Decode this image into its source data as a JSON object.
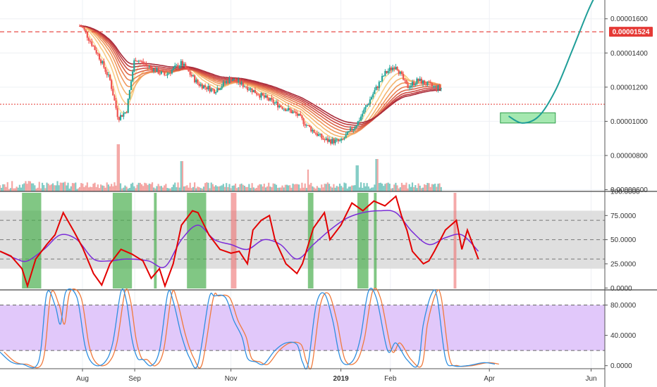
{
  "colors": {
    "up": "#26a69a",
    "down": "#ef5350",
    "vol_up": "#80cbc4",
    "vol_down": "#f4a6a4",
    "alert": "#e53935",
    "ribbon": [
      "#fbe0a0",
      "#f8cc84",
      "#f4b46e",
      "#f0995e",
      "#e87f52",
      "#dc6449",
      "#cf4c43",
      "#bf3a3e",
      "#a82a39"
    ],
    "rsi_fast": "#e30000",
    "rsi_slow": "#7b2cd8",
    "rsi_band": "#d9d9d9",
    "green_shade": "#4caf50",
    "red_shade": "#ef7070",
    "stoch_band": "#e1c8fa",
    "stoch_k": "#2f8fe0",
    "stoch_d": "#f07a3c",
    "projection": "#1f9e98",
    "target_box": "#a5e8b0"
  },
  "chart_data": [
    {
      "type": "candlestick",
      "panel": "price",
      "scale": "linear",
      "ylim": [
        5.9e-06,
        1.71e-05
      ],
      "y_ticks": [
        "0.00001600",
        "0.00001400",
        "0.00001200",
        "0.00001000",
        "0.00000800",
        "0.00000600"
      ],
      "alert_line": {
        "value": 1.524e-05,
        "label": "0.00001524"
      },
      "support_line": {
        "value": 1.1e-05
      },
      "x_ticks": [
        "Aug",
        "Sep",
        "Nov",
        "2019",
        "Feb",
        "Apr",
        "Jun"
      ],
      "price_path": [
        [
          0,
          1.88e-05
        ],
        [
          10,
          1.72e-05
        ],
        [
          20,
          1.63e-05
        ],
        [
          30,
          1.55e-05
        ],
        [
          36,
          1.38e-05
        ],
        [
          40,
          1.24e-05
        ],
        [
          43,
          1.02e-05
        ],
        [
          46,
          1.06e-05
        ],
        [
          49,
          1.37e-05
        ],
        [
          54,
          1.32e-05
        ],
        [
          60,
          1.27e-05
        ],
        [
          66,
          1.34e-05
        ],
        [
          72,
          1.22e-05
        ],
        [
          78,
          1.18e-05
        ],
        [
          84,
          1.25e-05
        ],
        [
          90,
          1.2e-05
        ],
        [
          96,
          1.14e-05
        ],
        [
          102,
          1.09e-05
        ],
        [
          108,
          1.04e-05
        ],
        [
          112,
          9.7e-06
        ],
        [
          118,
          8.9e-06
        ],
        [
          124,
          8.8e-06
        ],
        [
          130,
          9.9e-06
        ],
        [
          136,
          1.17e-05
        ],
        [
          140,
          1.28e-05
        ],
        [
          144,
          1.33e-05
        ],
        [
          148,
          1.2e-05
        ],
        [
          152,
          1.24e-05
        ],
        [
          158,
          1.2e-05
        ],
        [
          166,
          1.18e-05
        ],
        [
          172,
          1.16e-05
        ],
        [
          180,
          1.22e-05
        ],
        [
          188,
          1.17e-05
        ],
        [
          200,
          1.14e-05
        ]
      ],
      "volume_spikes": [
        [
          43,
          0.95
        ],
        [
          66,
          0.55
        ],
        [
          130,
          0.45
        ],
        [
          137,
          0.6
        ],
        [
          112,
          0.35
        ]
      ],
      "projection": [
        [
          185,
          1.03e-05
        ],
        [
          190,
          9.9e-06
        ],
        [
          196,
          1.03e-05
        ],
        [
          202,
          1.18e-05
        ],
        [
          208,
          1.41e-05
        ],
        [
          214,
          1.65e-05
        ],
        [
          218,
          1.78e-05
        ]
      ],
      "target_zone": {
        "x": [
          182,
          202
        ],
        "y": [
          9.9e-06,
          1.05e-05
        ]
      }
    },
    {
      "type": "line",
      "panel": "rsi",
      "ylim": [
        -2,
        100
      ],
      "y_ticks": [
        "100.0000",
        "75.0000",
        "50.0000",
        "25.0000",
        "0.0000"
      ],
      "band": [
        20,
        80
      ],
      "dashed_levels": [
        70,
        50,
        30
      ],
      "fast_path": [
        [
          0,
          38
        ],
        [
          4,
          33
        ],
        [
          8,
          20
        ],
        [
          10,
          2
        ],
        [
          13,
          30
        ],
        [
          17,
          45
        ],
        [
          20,
          55
        ],
        [
          23,
          78
        ],
        [
          27,
          58
        ],
        [
          30,
          42
        ],
        [
          34,
          15
        ],
        [
          37,
          3
        ],
        [
          40,
          25
        ],
        [
          44,
          40
        ],
        [
          48,
          35
        ],
        [
          52,
          28
        ],
        [
          55,
          10
        ],
        [
          58,
          20
        ],
        [
          60,
          2
        ],
        [
          63,
          25
        ],
        [
          66,
          65
        ],
        [
          70,
          80
        ],
        [
          72,
          78
        ],
        [
          76,
          55
        ],
        [
          80,
          40
        ],
        [
          84,
          36
        ],
        [
          87,
          38
        ],
        [
          90,
          25
        ],
        [
          92,
          60
        ],
        [
          95,
          70
        ],
        [
          98,
          75
        ],
        [
          100,
          50
        ],
        [
          104,
          25
        ],
        [
          108,
          15
        ],
        [
          110,
          25
        ],
        [
          114,
          62
        ],
        [
          118,
          78
        ],
        [
          120,
          50
        ],
        [
          124,
          65
        ],
        [
          128,
          88
        ],
        [
          132,
          80
        ],
        [
          136,
          90
        ],
        [
          140,
          85
        ],
        [
          144,
          95
        ],
        [
          146,
          75
        ],
        [
          148,
          60
        ],
        [
          150,
          38
        ],
        [
          154,
          25
        ],
        [
          156,
          28
        ],
        [
          158,
          38
        ],
        [
          162,
          60
        ],
        [
          166,
          70
        ],
        [
          168,
          40
        ],
        [
          170,
          60
        ],
        [
          174,
          30
        ]
      ],
      "slow_path": [
        [
          0,
          38
        ],
        [
          6,
          30
        ],
        [
          10,
          28
        ],
        [
          16,
          40
        ],
        [
          22,
          55
        ],
        [
          28,
          50
        ],
        [
          34,
          30
        ],
        [
          40,
          28
        ],
        [
          46,
          30
        ],
        [
          54,
          28
        ],
        [
          60,
          22
        ],
        [
          66,
          50
        ],
        [
          72,
          65
        ],
        [
          78,
          50
        ],
        [
          84,
          45
        ],
        [
          90,
          40
        ],
        [
          96,
          50
        ],
        [
          102,
          45
        ],
        [
          108,
          30
        ],
        [
          114,
          45
        ],
        [
          120,
          60
        ],
        [
          126,
          72
        ],
        [
          132,
          78
        ],
        [
          138,
          80
        ],
        [
          144,
          78
        ],
        [
          150,
          58
        ],
        [
          156,
          45
        ],
        [
          162,
          52
        ],
        [
          168,
          55
        ],
        [
          174,
          38
        ]
      ],
      "green_zones": [
        [
          8,
          15
        ],
        [
          41,
          48
        ],
        [
          56,
          57
        ],
        [
          68,
          75
        ],
        [
          112,
          114
        ],
        [
          130,
          134
        ],
        [
          136,
          137
        ]
      ],
      "red_zones": [
        [
          84,
          86
        ],
        [
          165,
          166
        ]
      ]
    },
    {
      "type": "line",
      "panel": "stochastic",
      "ylim": [
        -4,
        100
      ],
      "y_ticks": [
        "80.0000",
        "40.0000",
        "0.0000"
      ],
      "band": [
        20,
        80
      ],
      "dashed_levels": [
        80,
        20
      ],
      "k_path": [
        [
          0,
          18
        ],
        [
          4,
          5
        ],
        [
          8,
          2
        ],
        [
          14,
          5
        ],
        [
          17,
          95
        ],
        [
          20,
          80
        ],
        [
          22,
          55
        ],
        [
          24,
          98
        ],
        [
          28,
          90
        ],
        [
          31,
          25
        ],
        [
          34,
          2
        ],
        [
          38,
          4
        ],
        [
          41,
          30
        ],
        [
          44,
          98
        ],
        [
          46,
          85
        ],
        [
          48,
          35
        ],
        [
          50,
          10
        ],
        [
          52,
          8
        ],
        [
          55,
          0
        ],
        [
          58,
          20
        ],
        [
          61,
          95
        ],
        [
          63,
          85
        ],
        [
          66,
          40
        ],
        [
          69,
          10
        ],
        [
          72,
          2
        ],
        [
          76,
          88
        ],
        [
          78,
          92
        ],
        [
          82,
          90
        ],
        [
          85,
          60
        ],
        [
          88,
          38
        ],
        [
          90,
          10
        ],
        [
          93,
          5
        ],
        [
          96,
          2
        ],
        [
          100,
          20
        ],
        [
          104,
          30
        ],
        [
          108,
          28
        ],
        [
          110,
          5
        ],
        [
          112,
          1
        ],
        [
          115,
          80
        ],
        [
          118,
          95
        ],
        [
          121,
          60
        ],
        [
          124,
          8
        ],
        [
          128,
          5
        ],
        [
          131,
          35
        ],
        [
          134,
          98
        ],
        [
          137,
          88
        ],
        [
          141,
          20
        ],
        [
          144,
          30
        ],
        [
          148,
          8
        ],
        [
          152,
          1
        ],
        [
          154,
          55
        ],
        [
          157,
          95
        ],
        [
          159,
          90
        ],
        [
          162,
          10
        ],
        [
          165,
          0
        ],
        [
          170,
          0
        ],
        [
          176,
          4
        ],
        [
          180,
          2
        ]
      ],
      "d_offset": 1.5
    }
  ]
}
